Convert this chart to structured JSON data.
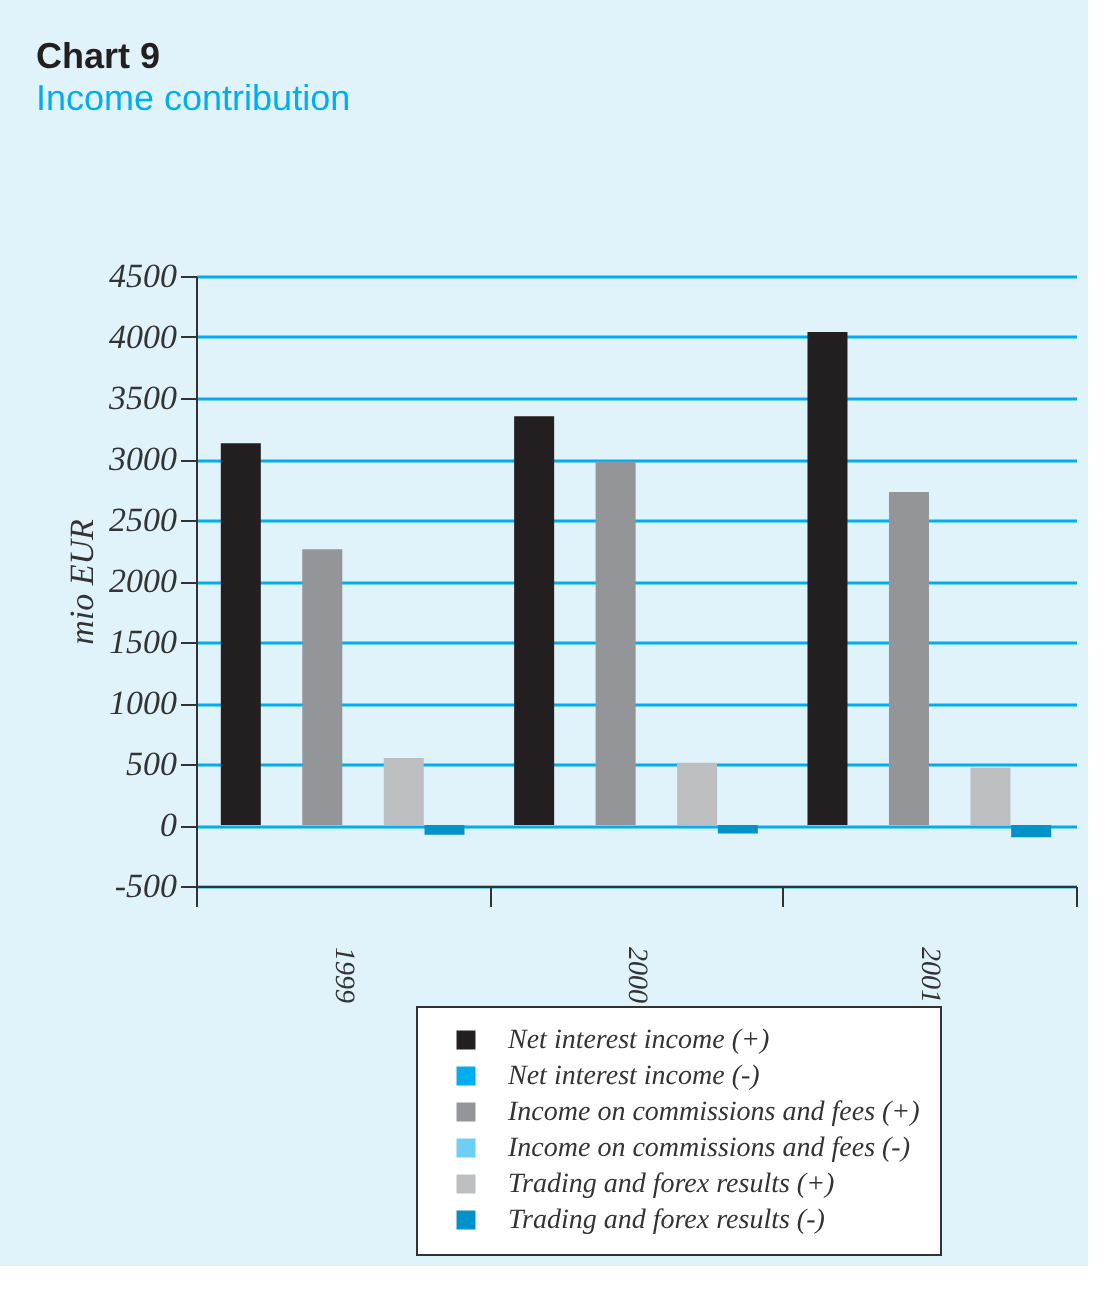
{
  "chart_data": {
    "type": "bar",
    "title": "Chart 9",
    "subtitle": "Income contribution",
    "ylabel": "mio EUR",
    "categories": [
      "1999",
      "2000",
      "2001"
    ],
    "series": [
      {
        "name": "Net interest income (+)",
        "color": "#231f20",
        "values": [
          3130,
          3350,
          4040
        ]
      },
      {
        "name": "Net interest income (-)",
        "color": "#00aeef",
        "values": [
          0,
          0,
          0
        ]
      },
      {
        "name": "Income on commissions and fees (+)",
        "color": "#939598",
        "values": [
          2260,
          2980,
          2730
        ]
      },
      {
        "name": "Income on commissions and fees (-)",
        "color": "#6dcff6",
        "values": [
          0,
          0,
          0
        ]
      },
      {
        "name": "Trading and forex results (+)",
        "color": "#bcbec0",
        "values": [
          550,
          510,
          470
        ]
      },
      {
        "name": "Trading and forex results (-)",
        "color": "#0092c8",
        "values": [
          -80,
          -70,
          -100
        ]
      }
    ],
    "ylim": [
      -500,
      4500
    ],
    "yticks": [
      -500,
      0,
      500,
      1000,
      1500,
      2000,
      2500,
      3000,
      3500,
      4000,
      4500
    ],
    "grid": "y",
    "legend": "bottom"
  }
}
